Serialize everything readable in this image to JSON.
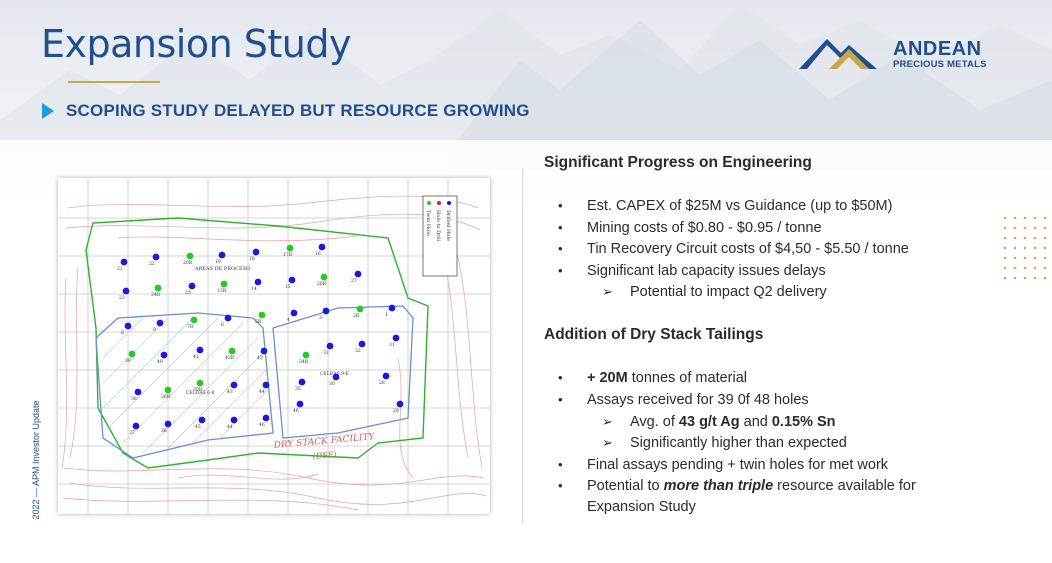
{
  "header": {
    "title": "Expansion Study",
    "subtitle": "SCOPING STUDY DELAYED BUT RESOURCE GROWING"
  },
  "logo": {
    "name": "ANDEAN",
    "tagline": "PRECIOUS METALS"
  },
  "side_label": "2022 — APM Investor Update",
  "map": {
    "legend": [
      "Drilled Hole",
      "Hole to Drill",
      "Twin Hole"
    ],
    "plant_label": "AREAS DE PROCESO",
    "cells_left": "CELDAS 6-8",
    "cells_right": "CELDAS 9-E",
    "facility_label_1": "DRY STACK FACILITY",
    "facility_label_2": "(DSF)",
    "holes": [
      {
        "id": "21",
        "c": "b"
      },
      {
        "id": "22",
        "c": "b"
      },
      {
        "id": "20R",
        "c": "g"
      },
      {
        "id": "19",
        "c": "b"
      },
      {
        "id": "18",
        "c": "b"
      },
      {
        "id": "17R",
        "c": "g"
      },
      {
        "id": "16",
        "c": "b"
      },
      {
        "id": "23",
        "c": "b"
      },
      {
        "id": "24R",
        "c": "g"
      },
      {
        "id": "25",
        "c": "b"
      },
      {
        "id": "13R",
        "c": "g"
      },
      {
        "id": "14",
        "c": "b"
      },
      {
        "id": "15",
        "c": "b"
      },
      {
        "id": "26R",
        "c": "g"
      },
      {
        "id": "27",
        "c": "b"
      },
      {
        "id": "8",
        "c": "b"
      },
      {
        "id": "9",
        "c": "b"
      },
      {
        "id": "7R",
        "c": "g"
      },
      {
        "id": "6",
        "c": "b"
      },
      {
        "id": "5R",
        "c": "g"
      },
      {
        "id": "4",
        "c": "b"
      },
      {
        "id": "3",
        "c": "b"
      },
      {
        "id": "2R",
        "c": "g"
      },
      {
        "id": "1",
        "c": "b"
      },
      {
        "id": "39",
        "c": "g"
      },
      {
        "id": "40",
        "c": "b"
      },
      {
        "id": "41",
        "c": "b"
      },
      {
        "id": "42R",
        "c": "g"
      },
      {
        "id": "43",
        "c": "b"
      },
      {
        "id": "34R",
        "c": "g"
      },
      {
        "id": "33",
        "c": "b"
      },
      {
        "id": "32",
        "c": "b"
      },
      {
        "id": "31",
        "c": "b"
      },
      {
        "id": "38",
        "c": "b"
      },
      {
        "id": "36R",
        "c": "g"
      },
      {
        "id": "35R",
        "c": "g"
      },
      {
        "id": "43",
        "c": "b"
      },
      {
        "id": "44",
        "c": "b"
      },
      {
        "id": "35",
        "c": "b"
      },
      {
        "id": "30",
        "c": "b"
      },
      {
        "id": "28",
        "c": "b"
      },
      {
        "id": "37",
        "c": "b"
      },
      {
        "id": "36",
        "c": "b"
      },
      {
        "id": "45",
        "c": "b"
      },
      {
        "id": "44",
        "c": "b"
      },
      {
        "id": "46",
        "c": "b"
      },
      {
        "id": "46",
        "c": "b"
      },
      {
        "id": "29",
        "c": "b"
      }
    ]
  },
  "engineering": {
    "title": "Significant Progress on Engineering",
    "bullets": [
      "Est. CAPEX of $25M vs Guidance (up to $50M)",
      "Mining costs of $0.80 - $0.95 / tonne",
      "Tin Recovery Circuit costs of $4,50 - $5.50 / tonne",
      "Significant lab capacity issues  delays"
    ],
    "sub": "Potential to impact Q2 delivery"
  },
  "tailings": {
    "title": "Addition of Dry Stack Tailings",
    "b1_bold": "+ 20M",
    "b1_rest": " tonnes of material",
    "b2": "Assays received for 39 0f 48 holes",
    "s1_a": "Avg. of ",
    "s1_b": "43 g/t Ag",
    "s1_c": " and ",
    "s1_d": "0.15% Sn",
    "s2": "Significantly higher than expected",
    "b3": "Final assays pending + twin holes for met work",
    "b4_a": "Potential to ",
    "b4_b": "more than triple",
    "b4_c": " resource available for",
    "b4_d": "Expansion Study"
  },
  "bullet_glyph": "•",
  "arrow_glyph": "➢",
  "colors": {
    "brand_blue": "#1f4f8f",
    "accent_gold": "#c9a54c",
    "arrow_blue": "#1f9be0",
    "drilled": "#1a1ad8",
    "twin": "#22cc22"
  }
}
